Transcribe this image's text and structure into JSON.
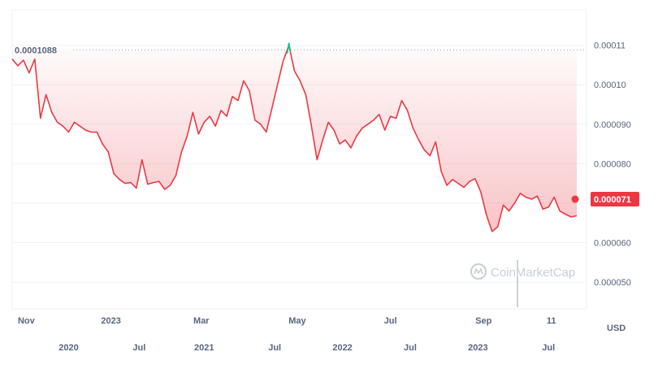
{
  "chart_data": {
    "type": "area",
    "unit": "USD",
    "watermark": "CoinMarketCap",
    "peak_label": "0.0001088",
    "peak_value": 0.0001088,
    "current_label": "0.000071",
    "current_value": 7.1e-05,
    "colors": {
      "line": "#ea3943",
      "peak": "#16c784",
      "fill": "#ea3943"
    },
    "ylim": [
      4.32e-05,
      0.000119
    ],
    "y_ticks": [
      {
        "v": 0.00011,
        "label": "0.00011"
      },
      {
        "v": 0.0001,
        "label": "0.00010"
      },
      {
        "v": 9e-05,
        "label": "0.000090"
      },
      {
        "v": 8e-05,
        "label": "0.000080"
      },
      {
        "v": 6e-05,
        "label": "0.000060"
      },
      {
        "v": 5e-05,
        "label": "0.000050"
      }
    ],
    "x_range": [
      0,
      100
    ],
    "x_ticks_top": [
      {
        "x": 1,
        "label": "Nov"
      },
      {
        "x": 17.5,
        "label": "2023"
      },
      {
        "x": 33.5,
        "label": "Mar"
      },
      {
        "x": 50.5,
        "label": "May"
      },
      {
        "x": 67,
        "label": "Jul"
      },
      {
        "x": 83.5,
        "label": "Sep"
      },
      {
        "x": 95.5,
        "label": "11"
      }
    ],
    "x_ticks_bottom": [
      {
        "x": 10,
        "label": "2020"
      },
      {
        "x": 22.5,
        "label": "Jul"
      },
      {
        "x": 34,
        "label": "2021"
      },
      {
        "x": 46.5,
        "label": "Jul"
      },
      {
        "x": 58.5,
        "label": "2022"
      },
      {
        "x": 70.5,
        "label": "Jul"
      },
      {
        "x": 82.5,
        "label": "2023"
      },
      {
        "x": 95,
        "label": "Jul"
      }
    ],
    "series": [
      {
        "values": [
          [
            0,
            0.0001065
          ],
          [
            1,
            0.0001048
          ],
          [
            2,
            0.0001062
          ],
          [
            3,
            0.000103
          ],
          [
            4,
            0.0001065
          ],
          [
            5,
            9.15e-05
          ],
          [
            6,
            9.75e-05
          ],
          [
            7,
            9.3e-05
          ],
          [
            8,
            9.05e-05
          ],
          [
            9,
            8.95e-05
          ],
          [
            10,
            8.8e-05
          ],
          [
            11,
            9.05e-05
          ],
          [
            12,
            8.95e-05
          ],
          [
            13,
            8.85e-05
          ],
          [
            14,
            8.8e-05
          ],
          [
            15,
            8.8e-05
          ],
          [
            16,
            8.5e-05
          ],
          [
            17,
            8.3e-05
          ],
          [
            18,
            7.75e-05
          ],
          [
            19,
            7.6e-05
          ],
          [
            20,
            7.5e-05
          ],
          [
            21,
            7.52e-05
          ],
          [
            22,
            7.38e-05
          ],
          [
            23,
            8.1e-05
          ],
          [
            24,
            7.48e-05
          ],
          [
            25,
            7.52e-05
          ],
          [
            26,
            7.55e-05
          ],
          [
            27,
            7.35e-05
          ],
          [
            28,
            7.45e-05
          ],
          [
            29,
            7.7e-05
          ],
          [
            30,
            8.3e-05
          ],
          [
            31,
            8.7e-05
          ],
          [
            32,
            9.3e-05
          ],
          [
            33,
            8.75e-05
          ],
          [
            34,
            9.05e-05
          ],
          [
            35,
            9.2e-05
          ],
          [
            36,
            8.95e-05
          ],
          [
            37,
            9.35e-05
          ],
          [
            38,
            9.2e-05
          ],
          [
            39,
            9.7e-05
          ],
          [
            40,
            9.6e-05
          ],
          [
            41,
            0.000101
          ],
          [
            42,
            9.85e-05
          ],
          [
            43,
            9.1e-05
          ],
          [
            44,
            9e-05
          ],
          [
            45,
            8.8e-05
          ],
          [
            46,
            9.4e-05
          ],
          [
            47,
            0.0001
          ],
          [
            48,
            0.000106
          ],
          [
            49,
            0.00011
          ],
          [
            50,
            0.0001035
          ],
          [
            51,
            0.000101
          ],
          [
            52,
            9.75e-05
          ],
          [
            53,
            8.95e-05
          ],
          [
            54,
            8.1e-05
          ],
          [
            55,
            8.6e-05
          ],
          [
            56,
            9.05e-05
          ],
          [
            57,
            8.85e-05
          ],
          [
            58,
            8.5e-05
          ],
          [
            59,
            8.6e-05
          ],
          [
            60,
            8.4e-05
          ],
          [
            61,
            8.7e-05
          ],
          [
            62,
            8.9e-05
          ],
          [
            63,
            9e-05
          ],
          [
            64,
            9.1e-05
          ],
          [
            65,
            9.25e-05
          ],
          [
            66,
            8.85e-05
          ],
          [
            67,
            9.2e-05
          ],
          [
            68,
            9.15e-05
          ],
          [
            69,
            9.6e-05
          ],
          [
            70,
            9.35e-05
          ],
          [
            71,
            8.9e-05
          ],
          [
            72,
            8.6e-05
          ],
          [
            73,
            8.35e-05
          ],
          [
            74,
            8.2e-05
          ],
          [
            75,
            8.55e-05
          ],
          [
            76,
            7.8e-05
          ],
          [
            77,
            7.45e-05
          ],
          [
            78,
            7.6e-05
          ],
          [
            79,
            7.5e-05
          ],
          [
            80,
            7.4e-05
          ],
          [
            81,
            7.55e-05
          ],
          [
            82,
            7.62e-05
          ],
          [
            83,
            7.28e-05
          ],
          [
            84,
            6.7e-05
          ],
          [
            85,
            6.28e-05
          ],
          [
            86,
            6.4e-05
          ],
          [
            87,
            6.95e-05
          ],
          [
            88,
            6.8e-05
          ],
          [
            89,
            7e-05
          ],
          [
            90,
            7.25e-05
          ],
          [
            91,
            7.15e-05
          ],
          [
            92,
            7.1e-05
          ],
          [
            93,
            7.18e-05
          ],
          [
            94,
            6.85e-05
          ],
          [
            95,
            6.9e-05
          ],
          [
            96,
            7.15e-05
          ],
          [
            97,
            6.8e-05
          ],
          [
            98,
            6.72e-05
          ],
          [
            99,
            6.65e-05
          ],
          [
            100,
            6.68e-05
          ]
        ]
      }
    ]
  }
}
